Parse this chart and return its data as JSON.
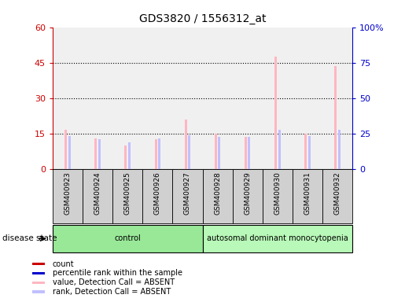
{
  "title": "GDS3820 / 1556312_at",
  "samples": [
    "GSM400923",
    "GSM400924",
    "GSM400925",
    "GSM400926",
    "GSM400927",
    "GSM400928",
    "GSM400929",
    "GSM400930",
    "GSM400931",
    "GSM400932"
  ],
  "absent_value": [
    16.5,
    13.0,
    10.0,
    12.5,
    21.0,
    15.0,
    13.5,
    47.5,
    15.0,
    43.5
  ],
  "absent_rank": [
    23.5,
    21.0,
    19.0,
    21.5,
    24.0,
    23.0,
    22.5,
    28.0,
    23.5,
    28.0
  ],
  "ylim_left": [
    0,
    60
  ],
  "ylim_right": [
    0,
    100
  ],
  "yticks_left": [
    0,
    15,
    30,
    45,
    60
  ],
  "yticks_right": [
    0,
    25,
    50,
    75,
    100
  ],
  "ytick_labels_right": [
    "0",
    "25",
    "50",
    "75",
    "100%"
  ],
  "groups": [
    {
      "label": "control",
      "indices": [
        0,
        1,
        2,
        3,
        4
      ],
      "color": "#98e898"
    },
    {
      "label": "autosomal dominant monocytopenia",
      "indices": [
        5,
        6,
        7,
        8,
        9
      ],
      "color": "#b8f8b8"
    }
  ],
  "absent_value_color": "#ffb6c1",
  "absent_rank_color": "#c0c0ff",
  "bg_color": "#ffffff",
  "plot_bg_color": "#f0f0f0",
  "sample_box_color": "#d0d0d0",
  "left_axis_color": "#cc0000",
  "right_axis_color": "#0000cc",
  "legend_items": [
    {
      "label": "count",
      "color": "#cc0000"
    },
    {
      "label": "percentile rank within the sample",
      "color": "#0000cc"
    },
    {
      "label": "value, Detection Call = ABSENT",
      "color": "#ffb6c1"
    },
    {
      "label": "rank, Detection Call = ABSENT",
      "color": "#c0c0ff"
    }
  ],
  "disease_state_label": "disease state"
}
